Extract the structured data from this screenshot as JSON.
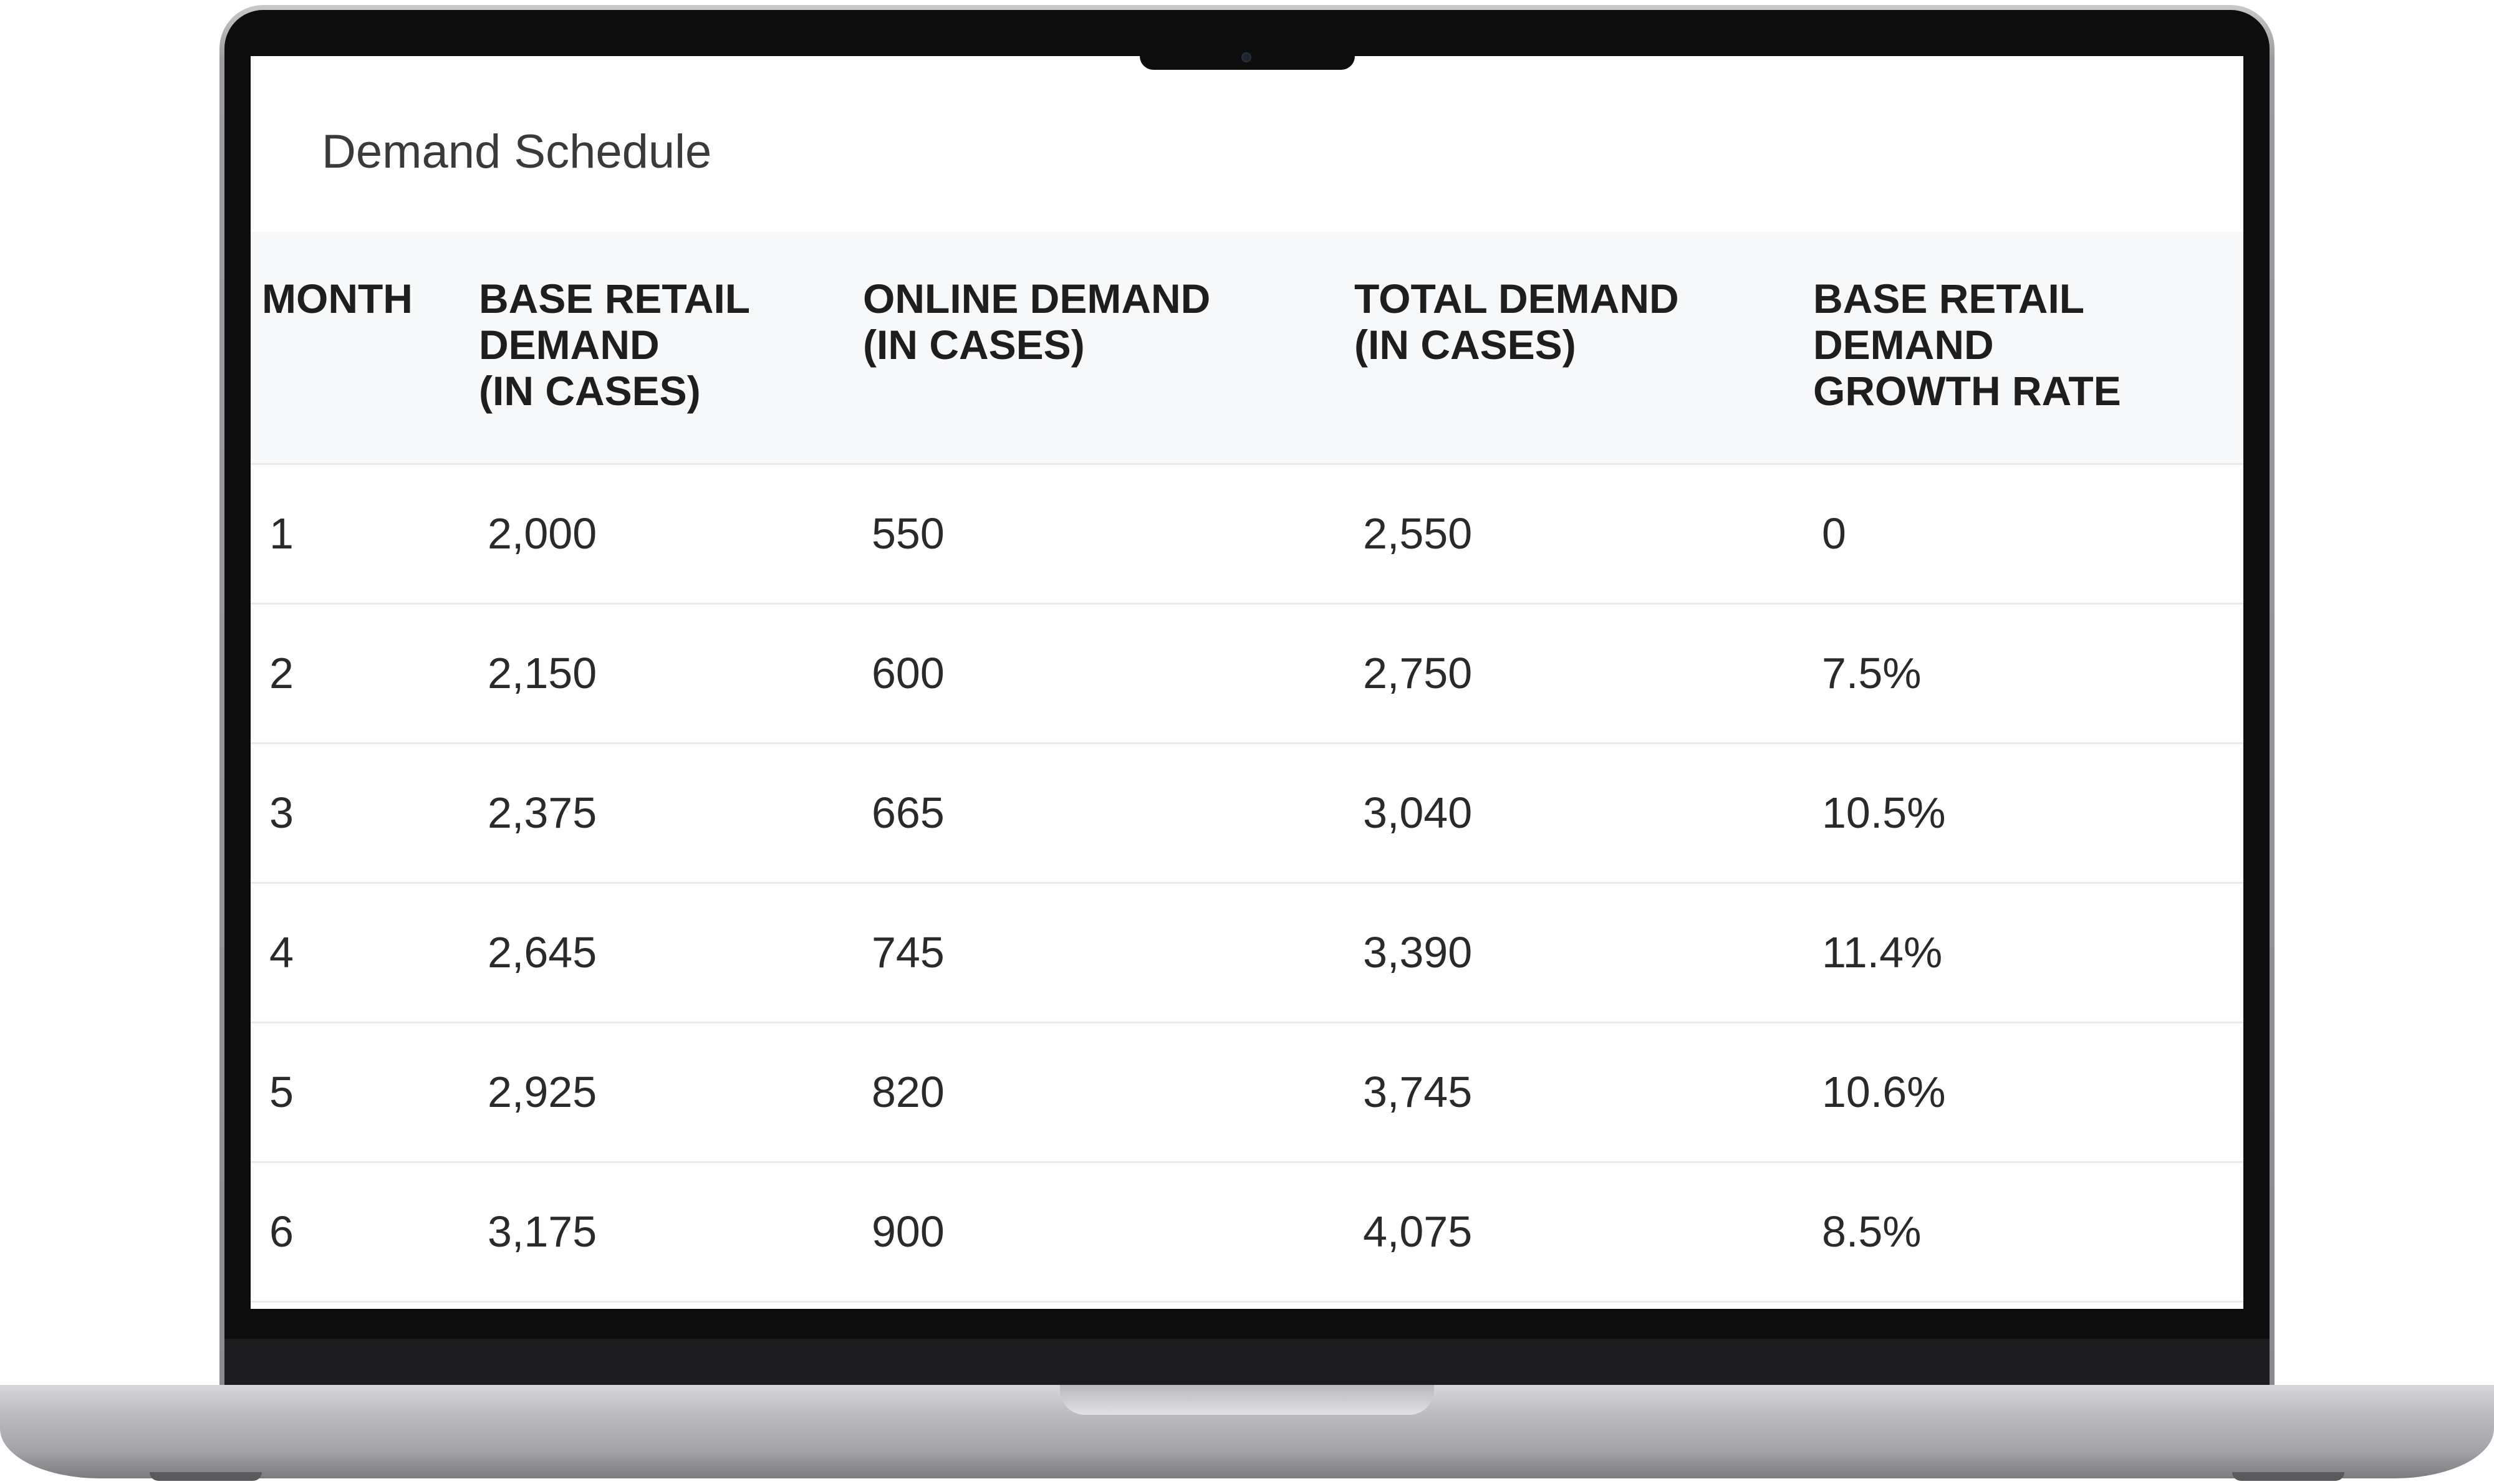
{
  "page": {
    "title": "Demand Schedule"
  },
  "table": {
    "headers": [
      "MONTH",
      "BASE RETAIL\nDEMAND\n(IN CASES)",
      "ONLINE DEMAND\n(IN CASES)",
      "TOTAL DEMAND\n(IN CASES)",
      "BASE RETAIL\nDEMAND\nGROWTH RATE"
    ],
    "rows": [
      [
        "1",
        "2,000",
        "550",
        "2,550",
        "0"
      ],
      [
        "2",
        "2,150",
        "600",
        "2,750",
        "7.5%"
      ],
      [
        "3",
        "2,375",
        "665",
        "3,040",
        "10.5%"
      ],
      [
        "4",
        "2,645",
        "745",
        "3,390",
        "11.4%"
      ],
      [
        "5",
        "2,925",
        "820",
        "3,745",
        "10.6%"
      ],
      [
        "6",
        "3,175",
        "900",
        "4,075",
        "8.5%"
      ]
    ]
  },
  "colors": {
    "header_background": "#f6f8fa",
    "row_divider": "#e6e8ea",
    "text": "#2a2a2a",
    "bezel": "#0d0d0d"
  }
}
